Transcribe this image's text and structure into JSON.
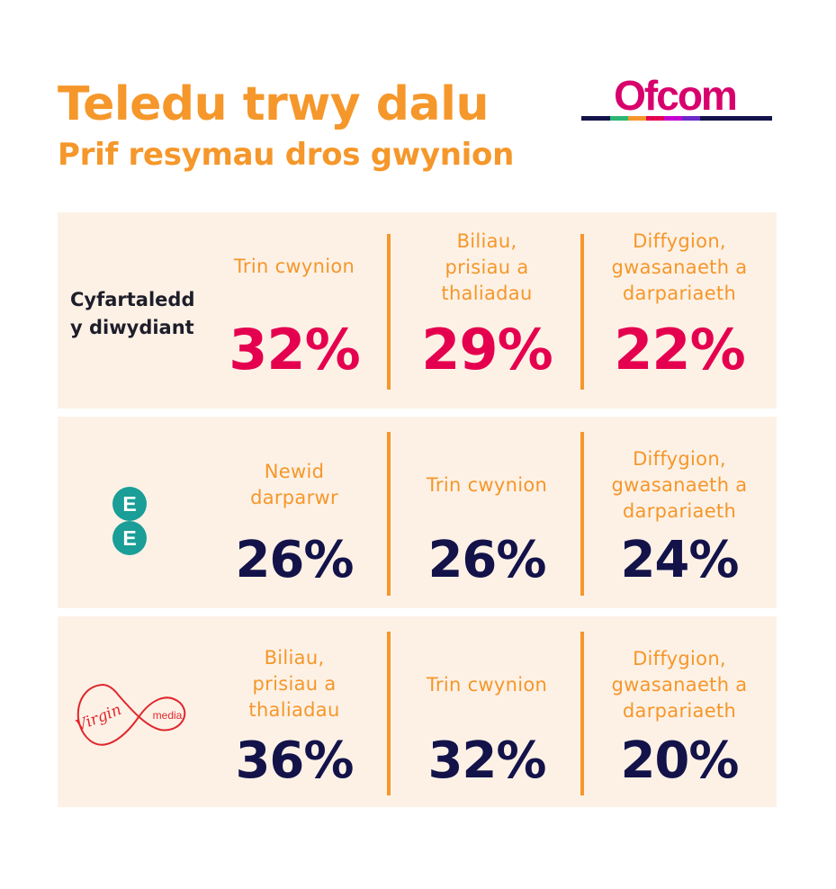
{
  "header": {
    "title": "Teledu trwy dalu",
    "subtitle": "Prif resymau dros gwynion",
    "logo_text": "Ofcom"
  },
  "colors": {
    "accent": "#f5972a",
    "panel_bg": "#fdf1e6",
    "highlight": "#e5004f",
    "dark": "#13134a"
  },
  "rows": [
    {
      "label_line1": "Cyfartaledd",
      "label_line2": "y diwydiant",
      "items": [
        {
          "label_lines": [
            "Trin cwynion"
          ],
          "value": "32%"
        },
        {
          "label_lines": [
            "Biliau,",
            "prisiau a",
            "thaliadau"
          ],
          "value": "29%"
        },
        {
          "label_lines": [
            "Diffygion,",
            "gwasanaeth a",
            "darpariaeth"
          ],
          "value": "22%"
        }
      ]
    },
    {
      "logo": {
        "icon": "ee-logo-icon",
        "letters": [
          "E",
          "E"
        ]
      },
      "items": [
        {
          "label_lines": [
            "Newid",
            "darparwr"
          ],
          "value": "26%"
        },
        {
          "label_lines": [
            "Trin cwynion"
          ],
          "value": "26%"
        },
        {
          "label_lines": [
            "Diffygion,",
            "gwasanaeth a",
            "darpariaeth"
          ],
          "value": "24%"
        }
      ]
    },
    {
      "logo": {
        "icon": "virgin-media-logo-icon",
        "word1": "Virgin",
        "word2": "media"
      },
      "items": [
        {
          "label_lines": [
            "Biliau,",
            "prisiau a",
            "thaliadau"
          ],
          "value": "36%"
        },
        {
          "label_lines": [
            "Trin cwynion"
          ],
          "value": "32%"
        },
        {
          "label_lines": [
            "Diffygion,",
            "gwasanaeth a",
            "darpariaeth"
          ],
          "value": "20%"
        }
      ]
    }
  ]
}
